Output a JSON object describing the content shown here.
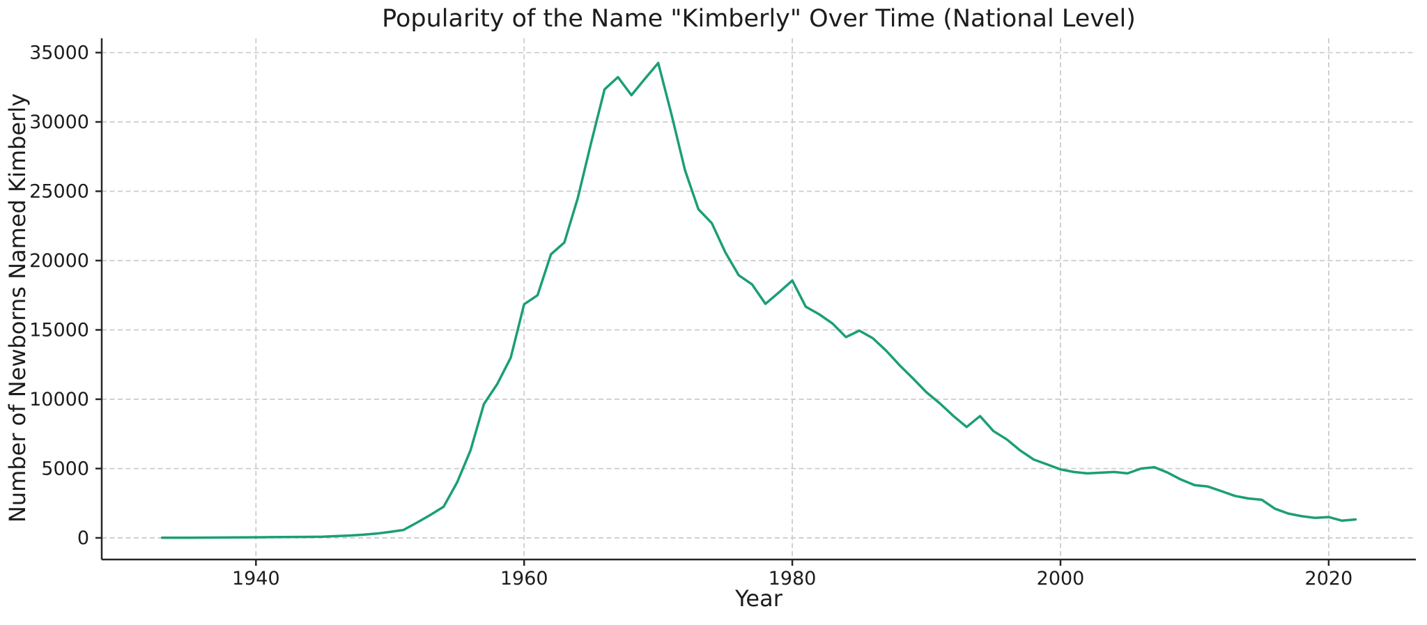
{
  "chart_data": {
    "type": "line",
    "title": "Popularity of the Name \"Kimberly\" Over Time (National Level)",
    "xlabel": "Year",
    "ylabel": "Number of Newborns Named Kimberly",
    "series": [
      {
        "name": "Kimberly",
        "x": [
          1933,
          1934,
          1935,
          1936,
          1937,
          1938,
          1939,
          1940,
          1941,
          1942,
          1943,
          1944,
          1945,
          1946,
          1947,
          1948,
          1949,
          1950,
          1951,
          1952,
          1953,
          1954,
          1955,
          1956,
          1957,
          1958,
          1959,
          1960,
          1961,
          1962,
          1963,
          1964,
          1965,
          1966,
          1967,
          1968,
          1969,
          1970,
          1971,
          1972,
          1973,
          1974,
          1975,
          1976,
          1977,
          1978,
          1979,
          1980,
          1981,
          1982,
          1983,
          1984,
          1985,
          1986,
          1987,
          1988,
          1989,
          1990,
          1991,
          1992,
          1993,
          1994,
          1995,
          1996,
          1997,
          1998,
          1999,
          2000,
          2001,
          2002,
          2003,
          2004,
          2005,
          2006,
          2007,
          2008,
          2009,
          2010,
          2011,
          2012,
          2013,
          2014,
          2015,
          2016,
          2017,
          2018,
          2019,
          2020,
          2021,
          2022
        ],
        "values": [
          10,
          12,
          15,
          18,
          22,
          28,
          35,
          45,
          55,
          65,
          70,
          75,
          90,
          130,
          170,
          230,
          310,
          430,
          570,
          1100,
          1650,
          2250,
          4000,
          6300,
          9650,
          11100,
          13000,
          16850,
          17500,
          20450,
          21300,
          24500,
          28500,
          32350,
          33230,
          31930,
          33100,
          34250,
          30500,
          26500,
          23700,
          22700,
          20600,
          18950,
          18280,
          16880,
          17700,
          18560,
          16670,
          16130,
          15460,
          14480,
          14950,
          14400,
          13500,
          12450,
          11500,
          10500,
          9700,
          8800,
          8000,
          8780,
          7700,
          7100,
          6300,
          5650,
          5300,
          4940,
          4750,
          4650,
          4700,
          4750,
          4650,
          5000,
          5100,
          4700,
          4200,
          3800,
          3700,
          3370,
          3030,
          2840,
          2750,
          2100,
          1750,
          1560,
          1440,
          1500,
          1240,
          1330
        ]
      }
    ],
    "xticks": [
      1940,
      1960,
      1980,
      2000,
      2020
    ],
    "yticks": [
      0,
      5000,
      10000,
      15000,
      20000,
      25000,
      30000,
      35000
    ],
    "xlim": [
      1928.5,
      2026.5
    ],
    "ylim": [
      -1560,
      36030
    ],
    "grid": "dashed",
    "legend": "none",
    "line_color": "#1b9e77",
    "grid_color": "#cccccc",
    "axis_color": "#262626",
    "text_color": "#1c1c1c",
    "background": "#ffffff"
  }
}
